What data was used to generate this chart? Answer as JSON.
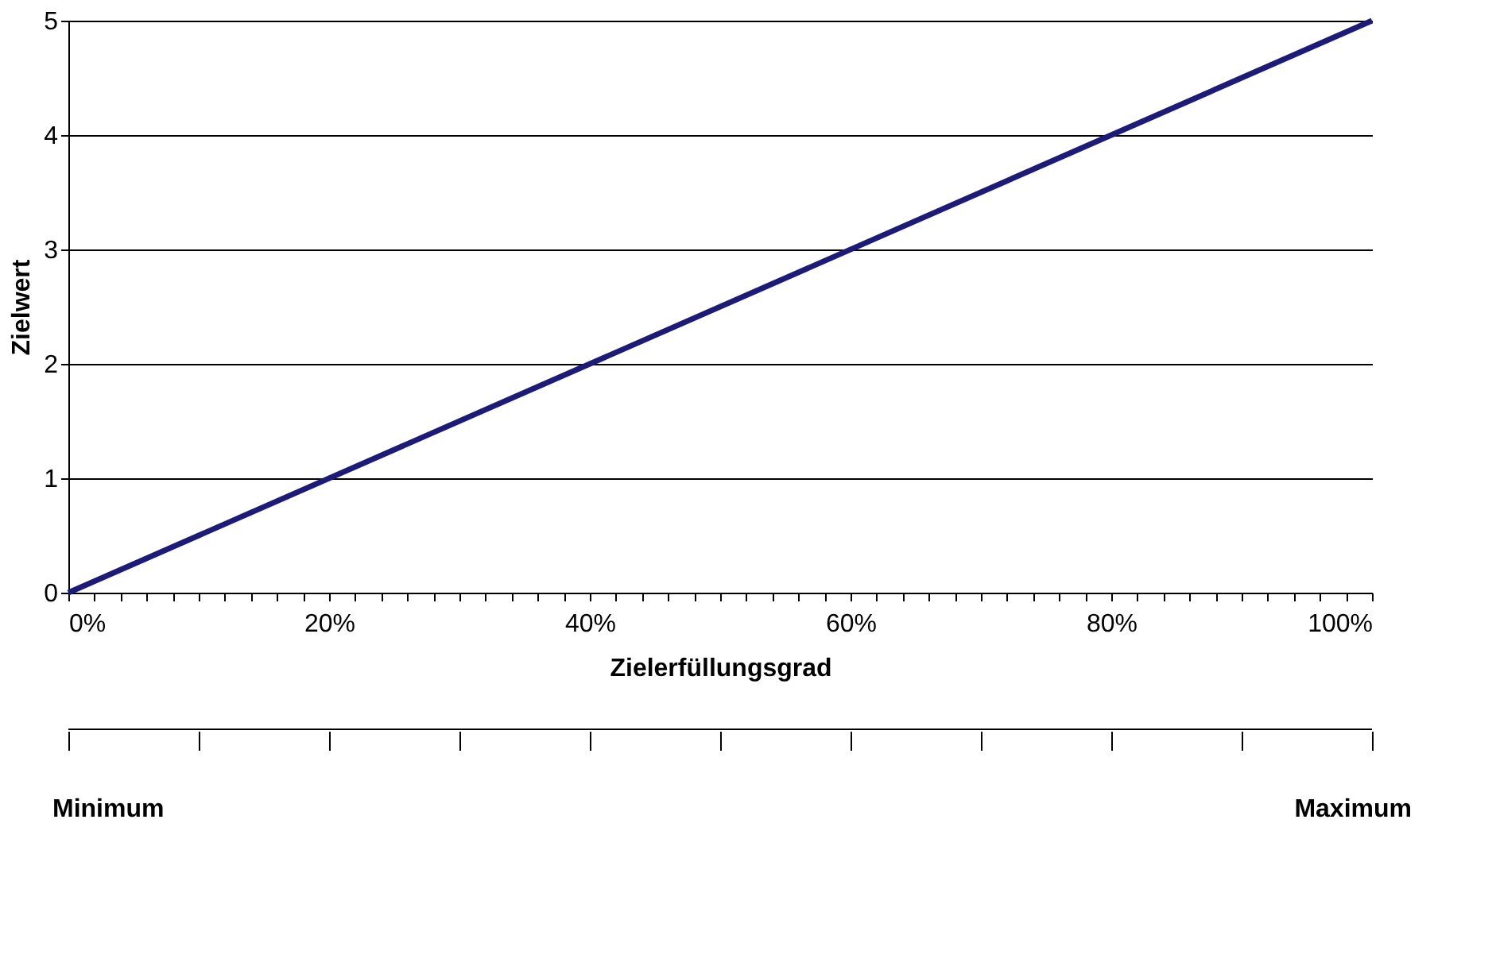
{
  "chart_data": {
    "type": "line",
    "xlabel": "Zielerfüllungsgrad",
    "ylabel": "Zielwert",
    "x": [
      0,
      100
    ],
    "series": [
      {
        "color": "#1c1c78",
        "values": [
          0,
          5
        ]
      }
    ],
    "xlim": [
      0,
      100
    ],
    "xticks": [
      {
        "value": 0,
        "label": "0%"
      },
      {
        "value": 2,
        "label": null
      },
      {
        "value": 4,
        "label": null
      },
      {
        "value": 6,
        "label": null
      },
      {
        "value": 8,
        "label": null
      },
      {
        "value": 10,
        "label": null
      },
      {
        "value": 12,
        "label": null
      },
      {
        "value": 14,
        "label": null
      },
      {
        "value": 16,
        "label": null
      },
      {
        "value": 18,
        "label": null
      },
      {
        "value": 20,
        "label": "20%"
      },
      {
        "value": 22,
        "label": null
      },
      {
        "value": 24,
        "label": null
      },
      {
        "value": 26,
        "label": null
      },
      {
        "value": 28,
        "label": null
      },
      {
        "value": 30,
        "label": null
      },
      {
        "value": 32,
        "label": null
      },
      {
        "value": 34,
        "label": null
      },
      {
        "value": 36,
        "label": null
      },
      {
        "value": 38,
        "label": null
      },
      {
        "value": 40,
        "label": "40%"
      },
      {
        "value": 42,
        "label": null
      },
      {
        "value": 44,
        "label": null
      },
      {
        "value": 46,
        "label": null
      },
      {
        "value": 48,
        "label": null
      },
      {
        "value": 50,
        "label": null
      },
      {
        "value": 52,
        "label": null
      },
      {
        "value": 54,
        "label": null
      },
      {
        "value": 56,
        "label": null
      },
      {
        "value": 58,
        "label": null
      },
      {
        "value": 60,
        "label": "60%"
      },
      {
        "value": 62,
        "label": null
      },
      {
        "value": 64,
        "label": null
      },
      {
        "value": 66,
        "label": null
      },
      {
        "value": 68,
        "label": null
      },
      {
        "value": 70,
        "label": null
      },
      {
        "value": 72,
        "label": null
      },
      {
        "value": 74,
        "label": null
      },
      {
        "value": 76,
        "label": null
      },
      {
        "value": 78,
        "label": null
      },
      {
        "value": 80,
        "label": "80%"
      },
      {
        "value": 82,
        "label": null
      },
      {
        "value": 84,
        "label": null
      },
      {
        "value": 86,
        "label": null
      },
      {
        "value": 88,
        "label": null
      },
      {
        "value": 90,
        "label": null
      },
      {
        "value": 92,
        "label": null
      },
      {
        "value": 94,
        "label": null
      },
      {
        "value": 96,
        "label": null
      },
      {
        "value": 98,
        "label": null
      },
      {
        "value": 100,
        "label": "100%"
      }
    ],
    "ylim": [
      0,
      5
    ],
    "yticks": [
      0,
      1,
      2,
      3,
      4,
      5
    ],
    "annotations": [
      "Minimum",
      "Maximum"
    ],
    "grid": "y",
    "legend": false,
    "marker": "none",
    "line_style": "solid"
  }
}
